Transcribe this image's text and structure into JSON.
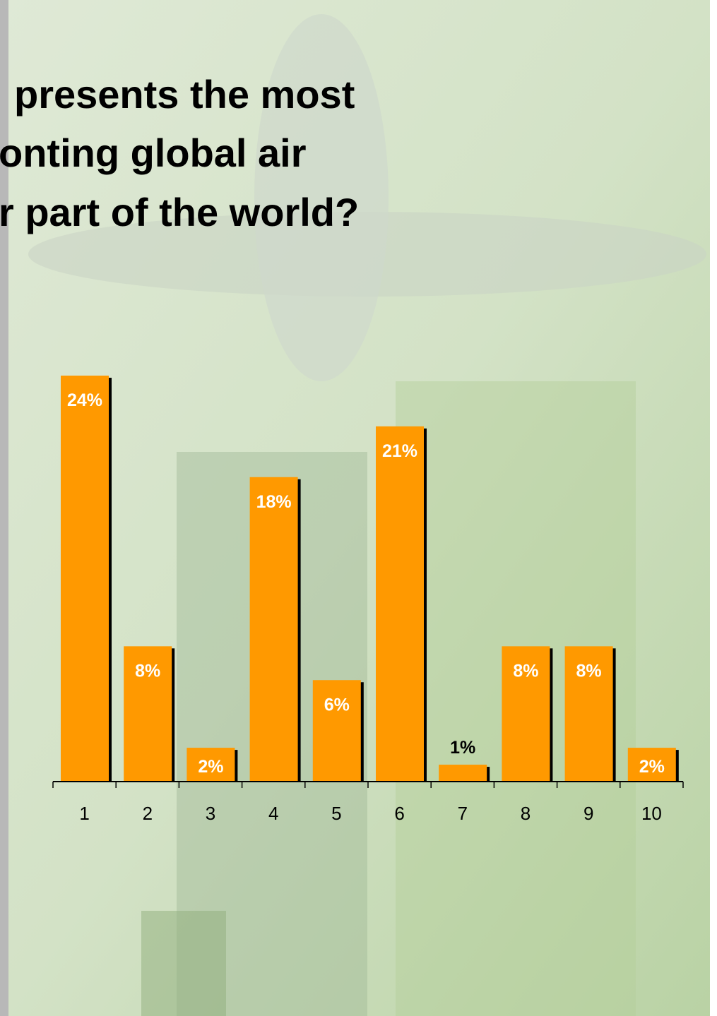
{
  "chart_data": {
    "type": "bar",
    "title": [
      "presents the most",
      "onting global air",
      "r part of the world?"
    ],
    "categories": [
      "1",
      "2",
      "3",
      "4",
      "5",
      "6",
      "7",
      "8",
      "9",
      "10"
    ],
    "values": [
      24,
      8,
      2,
      18,
      6,
      21,
      1,
      8,
      8,
      2
    ],
    "value_labels": [
      "24%",
      "8%",
      "2%",
      "18%",
      "6%",
      "21%",
      "1%",
      "8%",
      "8%",
      "2%"
    ],
    "color": "#ff9900"
  }
}
